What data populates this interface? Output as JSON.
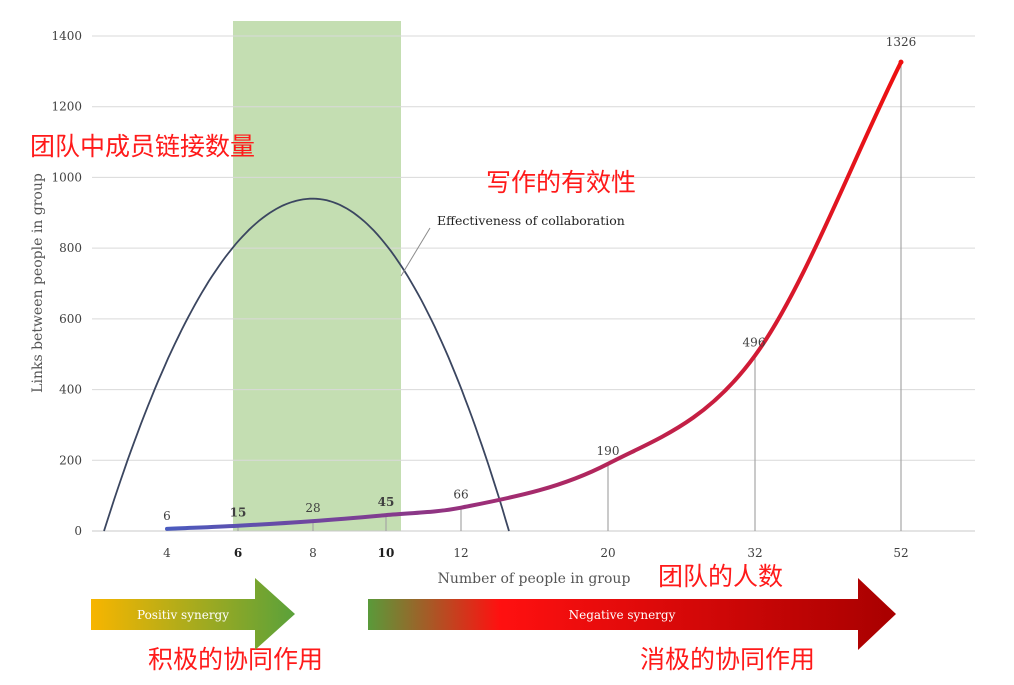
{
  "chart_data": {
    "type": "line",
    "ylabel": "Links between people in group",
    "xlabel": "Number of people in group",
    "ylim": [
      0,
      1400
    ],
    "y_ticks": [
      0,
      200,
      400,
      600,
      800,
      1000,
      1200,
      1400
    ],
    "categories": [
      "4",
      "6",
      "8",
      "10",
      "12",
      "20",
      "32",
      "52"
    ],
    "bold_categories": [
      "6",
      "10"
    ],
    "series": [
      {
        "values": [
          6,
          15,
          28,
          45,
          66,
          190,
          496,
          1326
        ],
        "labels": [
          "6",
          "15",
          "28",
          "45",
          "66",
          "190",
          "496",
          "1326"
        ]
      }
    ],
    "effectiveness_curve": {
      "label": "Effectiveness of collaboration",
      "shape": "inverted-parabola",
      "peak_x": "8",
      "peak_value": 940
    },
    "highlight_band": {
      "from": "6",
      "to": "10",
      "color": "#c4deb2"
    },
    "colors": {
      "links_start": "#4a5bbf",
      "links_end": "#ee1010",
      "effectiveness": "#3b4660",
      "grid": "#d9d9d9"
    },
    "grid": true
  },
  "annotations": {
    "links_count_cn": "团队中成员链接数量",
    "effectiveness_cn": "写作的有效性",
    "team_size_cn": "团队的人数",
    "positive_cn": "积极的协同作用",
    "negative_cn": "消极的协同作用"
  },
  "arrows": {
    "positive": {
      "label": "Positiv synergy",
      "color_start": "#f7b500",
      "color_end": "#5aa13a"
    },
    "negative": {
      "label": "Negative synergy",
      "color_start": "#5a9a3a",
      "color_mid": "#ff1010",
      "color_end": "#a80000"
    }
  }
}
